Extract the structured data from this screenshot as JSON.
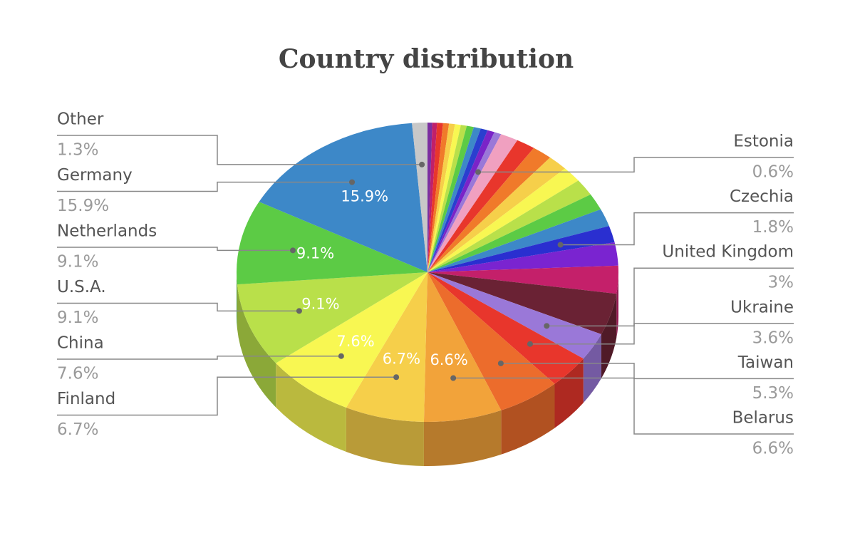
{
  "chart_data": {
    "type": "pie3d",
    "title": "Country distribution",
    "categories": [
      null,
      null,
      null,
      null,
      null,
      null,
      null,
      null,
      null,
      null,
      null,
      "Estonia",
      null,
      null,
      null,
      null,
      null,
      null,
      null,
      null,
      "Czechia",
      null,
      null,
      null,
      "United Kingdom",
      "Ukraine",
      "Taiwan",
      "Belarus",
      "Finland",
      "China",
      "U.S.A.",
      "Netherlands",
      "Germany",
      "Other"
    ],
    "values": [
      0.4,
      0.4,
      0.5,
      0.5,
      0.5,
      0.5,
      0.5,
      0.6,
      0.6,
      0.6,
      0.6,
      0.6,
      1.5,
      1.6,
      1.7,
      1.7,
      1.7,
      1.8,
      1.8,
      1.9,
      1.8,
      2.5,
      3.0,
      4.5,
      3,
      3.6,
      5.3,
      6.6,
      6.7,
      7.6,
      9.1,
      9.1,
      15.9,
      1.3
    ],
    "value_labels": [
      null,
      null,
      null,
      null,
      null,
      null,
      null,
      null,
      null,
      null,
      null,
      "0.6%",
      null,
      null,
      null,
      null,
      null,
      null,
      null,
      null,
      "1.8%",
      null,
      null,
      null,
      "3%",
      "3.6%",
      "5.3%",
      "6.6%",
      "6.7%",
      "7.6%",
      "9.1%",
      "9.1%",
      "15.9%",
      "1.3%"
    ],
    "colors": [
      "#7b2fa0",
      "#c0206a",
      "#e8362c",
      "#f07a2a",
      "#f6cf4a",
      "#f8f752",
      "#b9e04a",
      "#5ccb45",
      "#3d88c8",
      "#2a3fcf",
      "#7a24c8",
      "#9a78d8",
      "#f0a0c0",
      "#e8362c",
      "#f07a2a",
      "#f6cf4a",
      "#f8f752",
      "#b9e04a",
      "#5ccb45",
      "#3d88c8",
      "#2a2fd0",
      "#7a24d0",
      "#c4206a",
      "#6a2234",
      "#9a78d8",
      "#e8362c",
      "#ec6c2c",
      "#f2a33a",
      "#f6cf4a",
      "#f8f752",
      "#b9e04a",
      "#5ccb45",
      "#3d88c8",
      "#c8c8c8"
    ]
  }
}
